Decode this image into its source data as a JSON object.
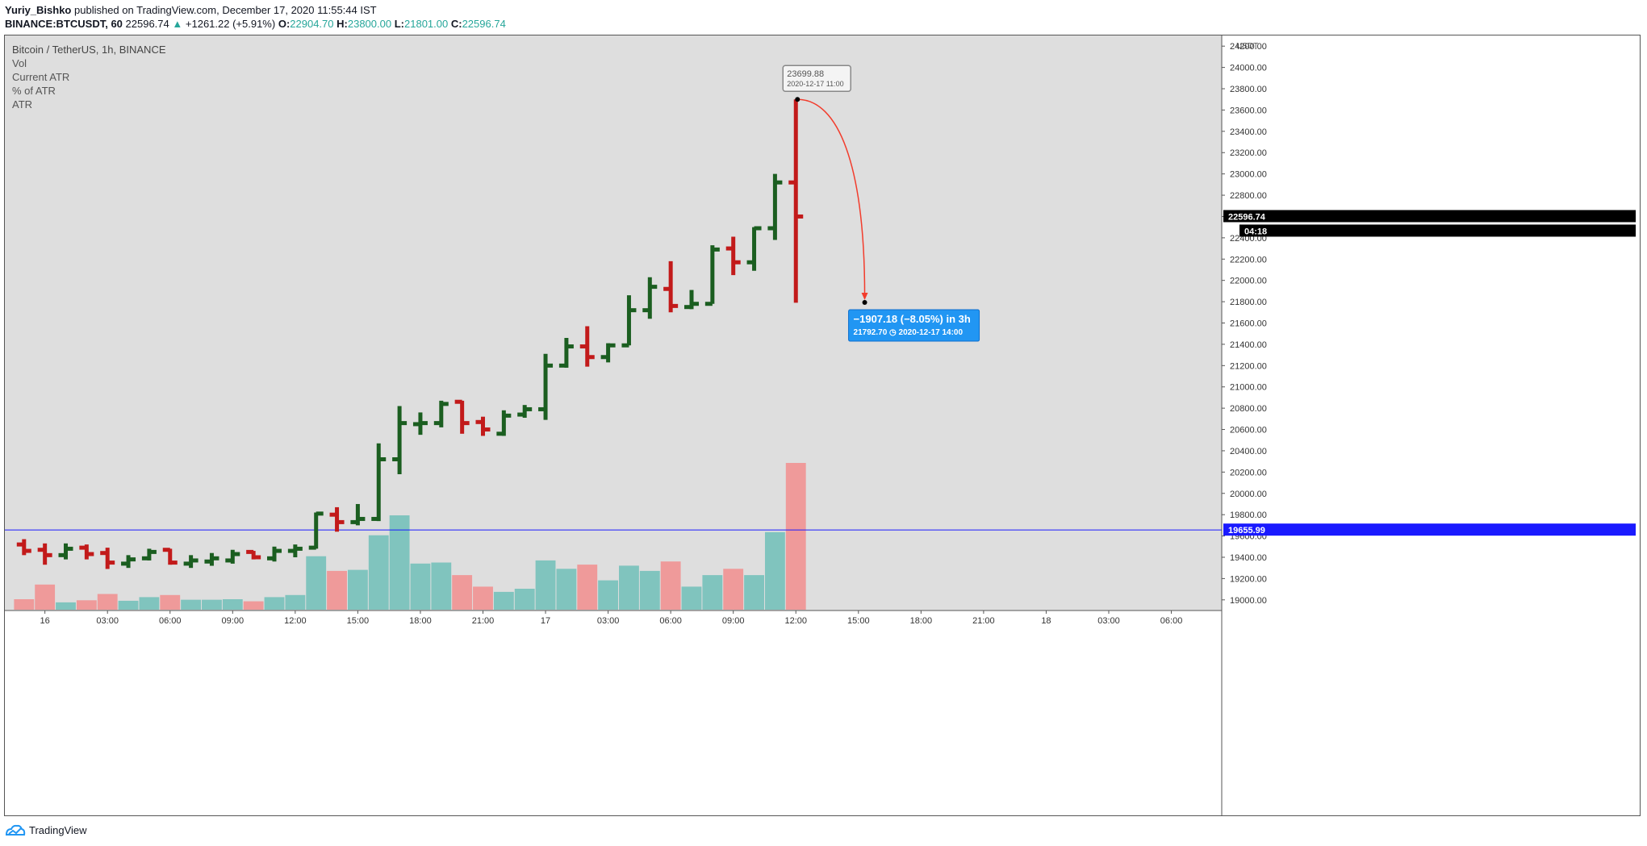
{
  "header": {
    "author": "Yuriy_Bishko",
    "published": "published on TradingView.com, December 17, 2020 11:55:44 IST",
    "symbol": "BINANCE:BTCUSDT, 60",
    "last": "22596.74",
    "change_arrow": "▲",
    "change": "+1261.22 (+5.91%)",
    "o_label": "O:",
    "o": "22904.70",
    "h_label": "H:",
    "h": "23800.00",
    "l_label": "L:",
    "l": "21801.00",
    "c_label": "C:",
    "c": "22596.74"
  },
  "legend": {
    "title": "Bitcoin / TetherUS, 1h, BINANCE",
    "items": [
      "Vol",
      "Current ATR",
      "% of ATR",
      "ATR"
    ]
  },
  "footer": {
    "brand": "TradingView"
  },
  "colors": {
    "up": "#1b5e20",
    "down": "#c21a1a",
    "vol_up": "#80c4be",
    "vol_down": "#ef9a9a",
    "background": "#dedede",
    "hline": "#1a1aff",
    "annotation": "#2196f3",
    "arrow": "#f23c2c"
  },
  "chart_data": {
    "type": "ohlc",
    "price_axis": {
      "unit": "USDT",
      "ylim": [
        18900,
        24300
      ],
      "ticks": [
        19000,
        19200,
        19400,
        19600,
        19800,
        20000,
        20200,
        20400,
        20600,
        20800,
        21000,
        21200,
        21400,
        21600,
        21800,
        22000,
        22200,
        22400,
        22600,
        22800,
        23000,
        23200,
        23400,
        23600,
        23800,
        24000,
        24200
      ],
      "tick_labels": [
        "19000.00",
        "19200.00",
        "19400.00",
        "19600.00",
        "19800.00",
        "20000.00",
        "20200.00",
        "20400.00",
        "20600.00",
        "20800.00",
        "21000.00",
        "21200.00",
        "21400.00",
        "21600.00",
        "21800.00",
        "22000.00",
        "22200.00",
        "22400.00",
        "22600.00",
        "22800.00",
        "23000.00",
        "23200.00",
        "23400.00",
        "23600.00",
        "23800.00",
        "24000.00",
        "24200.00"
      ]
    },
    "time_axis": {
      "labels": [
        "16",
        "03:00",
        "06:00",
        "09:00",
        "12:00",
        "15:00",
        "18:00",
        "21:00",
        "17",
        "03:00",
        "06:00",
        "09:00",
        "12:00",
        "15:00",
        "18:00",
        "21:00",
        "18",
        "03:00",
        "06:00"
      ],
      "label_bar_index": [
        1,
        4,
        7,
        10,
        13,
        16,
        19,
        22,
        25,
        28,
        31,
        34,
        37,
        40,
        43,
        46,
        49,
        52,
        55
      ]
    },
    "bars": [
      {
        "o": 19520,
        "h": 19570,
        "l": 19420,
        "c": 19460,
        "v": 100
      },
      {
        "o": 19470,
        "h": 19530,
        "l": 19330,
        "c": 19420,
        "v": 240
      },
      {
        "o": 19420,
        "h": 19530,
        "l": 19380,
        "c": 19480,
        "v": 70
      },
      {
        "o": 19490,
        "h": 19520,
        "l": 19380,
        "c": 19430,
        "v": 90
      },
      {
        "o": 19440,
        "h": 19490,
        "l": 19290,
        "c": 19350,
        "v": 150
      },
      {
        "o": 19340,
        "h": 19420,
        "l": 19300,
        "c": 19380,
        "v": 85
      },
      {
        "o": 19390,
        "h": 19480,
        "l": 19370,
        "c": 19450,
        "v": 120
      },
      {
        "o": 19470,
        "h": 19480,
        "l": 19330,
        "c": 19350,
        "v": 140
      },
      {
        "o": 19340,
        "h": 19420,
        "l": 19300,
        "c": 19370,
        "v": 95
      },
      {
        "o": 19360,
        "h": 19440,
        "l": 19320,
        "c": 19390,
        "v": 95
      },
      {
        "o": 19370,
        "h": 19470,
        "l": 19340,
        "c": 19430,
        "v": 100
      },
      {
        "o": 19450,
        "h": 19460,
        "l": 19380,
        "c": 19400,
        "v": 80
      },
      {
        "o": 19390,
        "h": 19500,
        "l": 19360,
        "c": 19460,
        "v": 120
      },
      {
        "o": 19460,
        "h": 19520,
        "l": 19400,
        "c": 19480,
        "v": 140
      },
      {
        "o": 19490,
        "h": 19820,
        "l": 19480,
        "c": 19810,
        "v": 510
      },
      {
        "o": 19800,
        "h": 19870,
        "l": 19640,
        "c": 19730,
        "v": 370
      },
      {
        "o": 19730,
        "h": 19900,
        "l": 19700,
        "c": 19760,
        "v": 380
      },
      {
        "o": 19760,
        "h": 20470,
        "l": 19740,
        "c": 20320,
        "v": 710
      },
      {
        "o": 20320,
        "h": 20820,
        "l": 20180,
        "c": 20660,
        "v": 900
      },
      {
        "o": 20650,
        "h": 20760,
        "l": 20550,
        "c": 20660,
        "v": 440
      },
      {
        "o": 20660,
        "h": 20870,
        "l": 20620,
        "c": 20840,
        "v": 450
      },
      {
        "o": 20860,
        "h": 20870,
        "l": 20560,
        "c": 20660,
        "v": 330
      },
      {
        "o": 20670,
        "h": 20720,
        "l": 20540,
        "c": 20600,
        "v": 220
      },
      {
        "o": 20560,
        "h": 20780,
        "l": 20540,
        "c": 20730,
        "v": 170
      },
      {
        "o": 20740,
        "h": 20830,
        "l": 20710,
        "c": 20790,
        "v": 200
      },
      {
        "o": 20790,
        "h": 21310,
        "l": 20690,
        "c": 21200,
        "v": 470
      },
      {
        "o": 21200,
        "h": 21460,
        "l": 21180,
        "c": 21380,
        "v": 390
      },
      {
        "o": 21380,
        "h": 21570,
        "l": 21190,
        "c": 21280,
        "v": 430
      },
      {
        "o": 21280,
        "h": 21410,
        "l": 21230,
        "c": 21390,
        "v": 280
      },
      {
        "o": 21390,
        "h": 21860,
        "l": 21390,
        "c": 21720,
        "v": 420
      },
      {
        "o": 21720,
        "h": 22030,
        "l": 21640,
        "c": 21940,
        "v": 370
      },
      {
        "o": 21920,
        "h": 22180,
        "l": 21700,
        "c": 21760,
        "v": 460
      },
      {
        "o": 21750,
        "h": 21910,
        "l": 21730,
        "c": 21780,
        "v": 220
      },
      {
        "o": 21780,
        "h": 22330,
        "l": 21780,
        "c": 22290,
        "v": 330
      },
      {
        "o": 22300,
        "h": 22410,
        "l": 22050,
        "c": 22170,
        "v": 390
      },
      {
        "o": 22170,
        "h": 22500,
        "l": 22090,
        "c": 22490,
        "v": 330
      },
      {
        "o": 22490,
        "h": 23000,
        "l": 22380,
        "c": 22920,
        "v": 740
      },
      {
        "o": 22920,
        "h": 23700,
        "l": 21790,
        "c": 22600,
        "v": 1400
      }
    ],
    "horizontal_line": {
      "price": 19655.99,
      "label": "19655.99"
    },
    "last_price_label": "22596.74",
    "countdown_label": "04:18",
    "high_marker": {
      "price": 23699.88,
      "label": "23699.88",
      "time": "2020-12-17 11:00"
    },
    "target_marker": {
      "price": 21792.7,
      "time": "2020-12-17 14:00",
      "bar_index": 40.3
    },
    "annotation": {
      "line1": "−1907.18 (−8.05%) in 3h",
      "line2": "21792.70 ◷ 2020-12-17  14:00"
    }
  }
}
